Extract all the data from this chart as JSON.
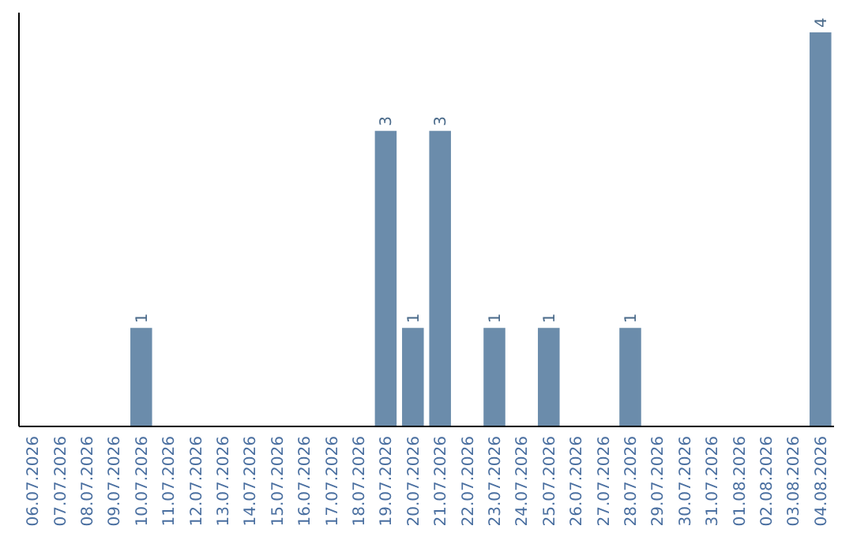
{
  "chart_data": {
    "type": "bar",
    "categories": [
      "06.07.2026",
      "07.07.2026",
      "08.07.2026",
      "09.07.2026",
      "10.07.2026",
      "11.07.2026",
      "12.07.2026",
      "13.07.2026",
      "14.07.2026",
      "15.07.2026",
      "16.07.2026",
      "17.07.2026",
      "18.07.2026",
      "19.07.2026",
      "20.07.2026",
      "21.07.2026",
      "22.07.2026",
      "23.07.2026",
      "24.07.2026",
      "25.07.2026",
      "26.07.2026",
      "27.07.2026",
      "28.07.2026",
      "29.07.2026",
      "30.07.2026",
      "31.07.2026",
      "01.08.2026",
      "02.08.2026",
      "03.08.2026",
      "04.08.2026"
    ],
    "values": [
      0,
      0,
      0,
      0,
      1,
      0,
      0,
      0,
      0,
      0,
      0,
      0,
      0,
      3,
      1,
      3,
      0,
      1,
      0,
      1,
      0,
      0,
      1,
      0,
      0,
      0,
      0,
      0,
      0,
      4
    ],
    "value_labels": [
      null,
      null,
      null,
      null,
      "1",
      null,
      null,
      null,
      null,
      null,
      null,
      null,
      null,
      "3",
      "1",
      "3",
      null,
      "1",
      null,
      "1",
      null,
      null,
      "1",
      null,
      null,
      null,
      null,
      null,
      null,
      "4"
    ],
    "color": "#6b8cab"
  }
}
